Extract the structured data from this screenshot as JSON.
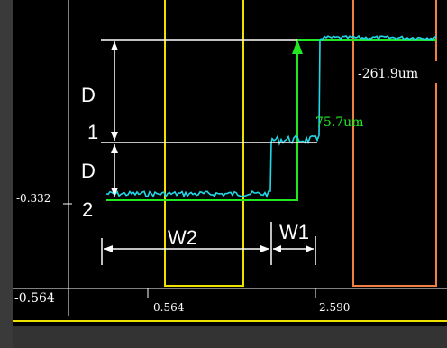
{
  "scope": {
    "y_ticks": [
      "-0.332",
      "-0.564"
    ],
    "x_ticks": [
      "0.564",
      "2.590"
    ],
    "readouts": {
      "upper": "-261.9um",
      "lower": "75.7um"
    },
    "colors": {
      "trace_cyan": "#22d8e8",
      "trace_green": "#22e822",
      "cursor_yellow": "#f0e000",
      "cursor_orange": "#f08040",
      "grid": "#ffffff",
      "background": "#000000"
    }
  },
  "annotations": {
    "d1": [
      "D",
      "1"
    ],
    "d2": [
      "D",
      "2"
    ],
    "w1": "W1",
    "w2": "W2"
  }
}
